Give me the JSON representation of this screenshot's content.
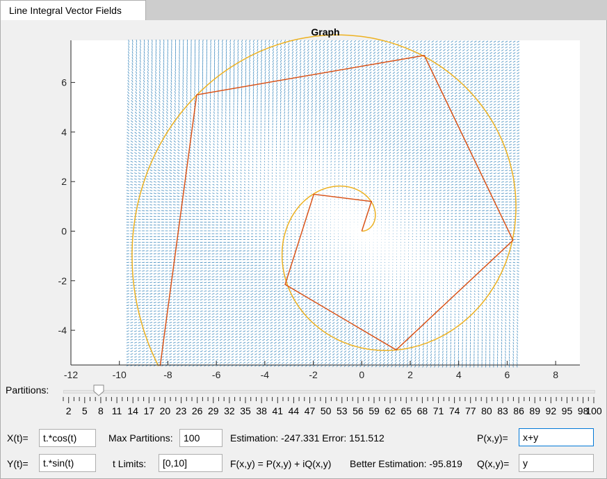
{
  "window": {
    "tab_label": "Line Integral Vector Fields"
  },
  "graph": {
    "title": "Graph"
  },
  "chart_data": {
    "type": "line",
    "title": "Graph",
    "xlim": [
      -12,
      9
    ],
    "ylim": [
      -5.4,
      7.7
    ],
    "x_ticks": [
      -12,
      -10,
      -8,
      -6,
      -4,
      -2,
      0,
      2,
      4,
      6,
      8
    ],
    "y_ticks": [
      -4,
      -2,
      0,
      2,
      4,
      6
    ],
    "vector_field": {
      "P": "x+y",
      "Q": "y",
      "x_range": [
        -9.6,
        6.4
      ],
      "y_range": [
        -5.4,
        7.7
      ],
      "color": "#1f77b4"
    },
    "series": [
      {
        "kind": "curve",
        "x_expr": "t*cos(t)",
        "y_expr": "t*sin(t)",
        "t_range": [
          0,
          10
        ],
        "color": "#edb120"
      },
      {
        "kind": "polyline",
        "color": "#d95319",
        "x": [
          0,
          0.4,
          -1.98,
          -3.16,
          1.42,
          6.24,
          2.58,
          -6.81,
          -8.32
        ],
        "y": [
          0,
          1.2,
          1.49,
          -2.15,
          -4.79,
          -0.37,
          7.09,
          5.5,
          -5.44
        ]
      }
    ]
  },
  "slider": {
    "label": "Partitions:",
    "value": 8,
    "min": 1,
    "max": 100,
    "labels": [
      "2",
      "5",
      "8",
      "11",
      "14",
      "17",
      "20",
      "23",
      "26",
      "29",
      "32",
      "35",
      "38",
      "41",
      "44",
      "47",
      "50",
      "53",
      "56",
      "59",
      "62",
      "65",
      "68",
      "71",
      "74",
      "77",
      "80",
      "83",
      "86",
      "89",
      "92",
      "95",
      "98",
      "100"
    ]
  },
  "controls": {
    "x_label": "X(t)=",
    "x_value": "t.*cos(t)",
    "y_label": "Y(t)=",
    "y_value": "t.*sin(t)",
    "maxp_label": "Max Partitions:",
    "maxp_value": "100",
    "tlim_label": "t Limits:",
    "tlim_value": "[0,10]",
    "estimation_text": "Estimation:  -247.331 Error:  151.512",
    "formula_text": "F(x,y) = P(x,y) + iQ(x,y)",
    "better_text": "Better Estimation:  -95.819",
    "p_label": "P(x,y)=",
    "p_value": "x+y",
    "q_label": "Q(x,y)=",
    "q_value": "y"
  }
}
